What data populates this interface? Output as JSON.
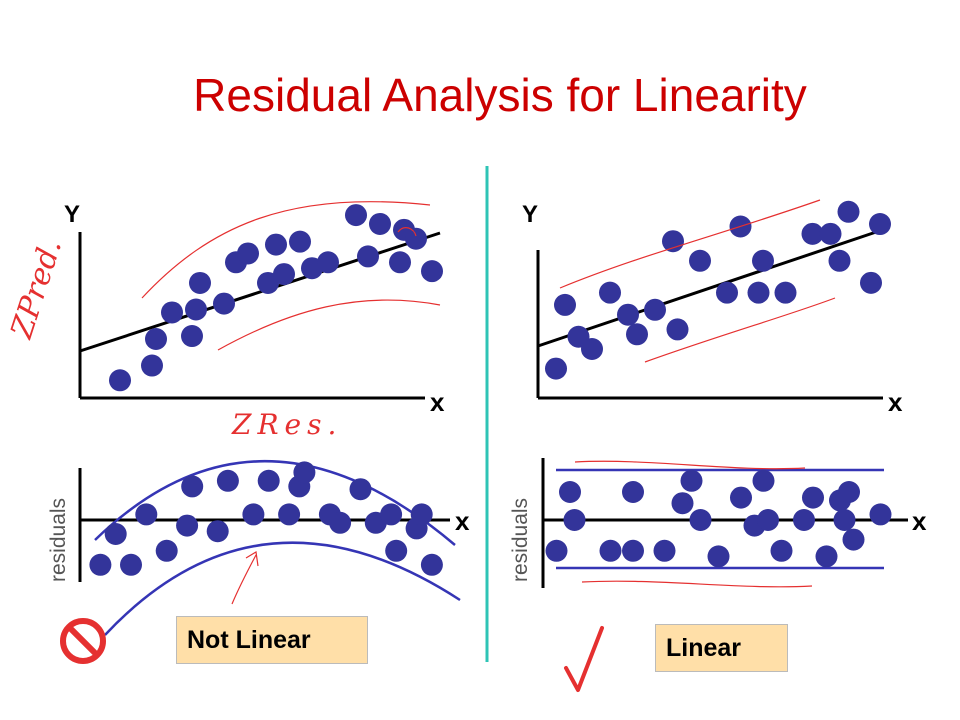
{
  "title": "Residual Analysis for Linearity",
  "colors": {
    "title": "#cc0000",
    "point": "#33349a",
    "band": "#3535b5",
    "annotation": "#e53030",
    "divider": "#2ec4b6",
    "box": "#ffdfa8"
  },
  "left": {
    "y_label": "Y",
    "x_label": "x",
    "res_x_label": "x",
    "res_y_label": "residuals",
    "box_label": "Not Linear",
    "verdict_icon": "no-symbol-icon",
    "handwriting_y": "ZPred.",
    "handwriting_x": "ZRes."
  },
  "right": {
    "y_label": "Y",
    "x_label": "x",
    "res_x_label": "x",
    "res_y_label": "residuals",
    "box_label": "Linear",
    "verdict_icon": "check-mark-icon"
  },
  "chart_data": [
    {
      "type": "scatter",
      "name": "left-scatter",
      "xlabel": "x",
      "ylabel": "Y",
      "x": [
        1.0,
        1.8,
        1.9,
        2.3,
        2.8,
        2.9,
        3.0,
        3.6,
        3.9,
        4.2,
        4.7,
        4.9,
        5.1,
        5.5,
        5.8,
        6.2,
        6.9,
        7.2,
        7.5,
        8.0,
        8.1,
        8.4,
        8.8
      ],
      "y": [
        0.6,
        1.1,
        2.0,
        2.9,
        2.1,
        3.0,
        3.9,
        3.2,
        4.6,
        4.9,
        3.9,
        5.2,
        4.2,
        5.3,
        4.4,
        4.6,
        6.2,
        4.8,
        5.9,
        4.6,
        5.7,
        5.4,
        4.3
      ],
      "fit": {
        "x0": 0,
        "y0": 1.7,
        "x1": 9.0,
        "y1": 5.7
      }
    },
    {
      "type": "scatter",
      "name": "left-residuals",
      "xlabel": "x",
      "ylabel": "residuals",
      "x": [
        0.4,
        0.7,
        1.0,
        1.3,
        1.7,
        2.1,
        2.2,
        2.7,
        2.9,
        3.4,
        3.7,
        4.1,
        4.3,
        4.4,
        4.9,
        5.1,
        5.5,
        5.8,
        6.1,
        6.2,
        6.6,
        6.7,
        6.9
      ],
      "y": [
        -1.6,
        -0.5,
        -1.6,
        0.2,
        -1.1,
        -0.2,
        1.2,
        -0.4,
        1.4,
        0.2,
        1.4,
        0.2,
        1.2,
        1.7,
        0.2,
        -0.1,
        1.1,
        -0.1,
        0.2,
        -1.1,
        -0.3,
        0.2,
        -1.6
      ],
      "band": "curved"
    },
    {
      "type": "scatter",
      "name": "right-scatter",
      "xlabel": "x",
      "ylabel": "Y",
      "x": [
        0.4,
        0.6,
        0.9,
        1.2,
        1.6,
        2.0,
        2.2,
        2.6,
        3.0,
        3.1,
        3.6,
        4.2,
        4.5,
        4.9,
        5.0,
        5.5,
        6.1,
        6.5,
        6.7,
        6.9,
        7.4,
        7.6
      ],
      "y": [
        1.2,
        3.8,
        2.5,
        2.0,
        4.3,
        3.4,
        2.6,
        3.6,
        6.4,
        2.8,
        5.6,
        4.3,
        7.0,
        4.3,
        5.6,
        4.3,
        6.7,
        6.7,
        5.6,
        7.6,
        4.7,
        7.1
      ]
    },
    {
      "type": "scatter",
      "name": "right-residuals",
      "xlabel": "x",
      "ylabel": "residuals",
      "x": [
        0.3,
        0.6,
        0.7,
        1.5,
        2.0,
        2.0,
        2.7,
        3.1,
        3.3,
        3.5,
        3.9,
        4.4,
        4.7,
        4.9,
        5.0,
        5.3,
        5.8,
        6.0,
        6.3,
        6.6,
        6.7,
        6.8,
        6.9,
        7.5
      ],
      "y": [
        -1.1,
        1.0,
        0.0,
        -1.1,
        1.0,
        -1.1,
        -1.1,
        0.6,
        1.4,
        0.0,
        -1.3,
        0.8,
        -0.2,
        1.4,
        0.0,
        -1.1,
        0.0,
        0.8,
        -1.3,
        0.7,
        0.0,
        1.0,
        -0.7,
        0.2
      ],
      "band": "horizontal"
    }
  ]
}
